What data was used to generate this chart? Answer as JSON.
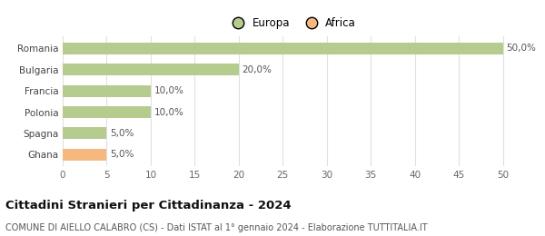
{
  "categories": [
    "Romania",
    "Bulgaria",
    "Francia",
    "Polonia",
    "Spagna",
    "Ghana"
  ],
  "values": [
    50.0,
    20.0,
    10.0,
    10.0,
    5.0,
    5.0
  ],
  "bar_colors": [
    "#b5cc8e",
    "#b5cc8e",
    "#b5cc8e",
    "#b5cc8e",
    "#b5cc8e",
    "#f5b97f"
  ],
  "bar_labels": [
    "50,0%",
    "20,0%",
    "10,0%",
    "10,0%",
    "5,0%",
    "5,0%"
  ],
  "legend": [
    {
      "label": "Europa",
      "color": "#b5cc8e"
    },
    {
      "label": "Africa",
      "color": "#f5b97f"
    }
  ],
  "xlim": [
    0,
    52
  ],
  "xticks": [
    0,
    5,
    10,
    15,
    20,
    25,
    30,
    35,
    40,
    45,
    50
  ],
  "title": "Cittadini Stranieri per Cittadinanza - 2024",
  "subtitle": "COMUNE DI AIELLO CALABRO (CS) - Dati ISTAT al 1° gennaio 2024 - Elaborazione TUTTITALIA.IT",
  "bg_color": "#ffffff",
  "grid_color": "#e0e0e0",
  "title_fontsize": 9.5,
  "subtitle_fontsize": 7.0,
  "label_fontsize": 7.5,
  "tick_fontsize": 7.5
}
